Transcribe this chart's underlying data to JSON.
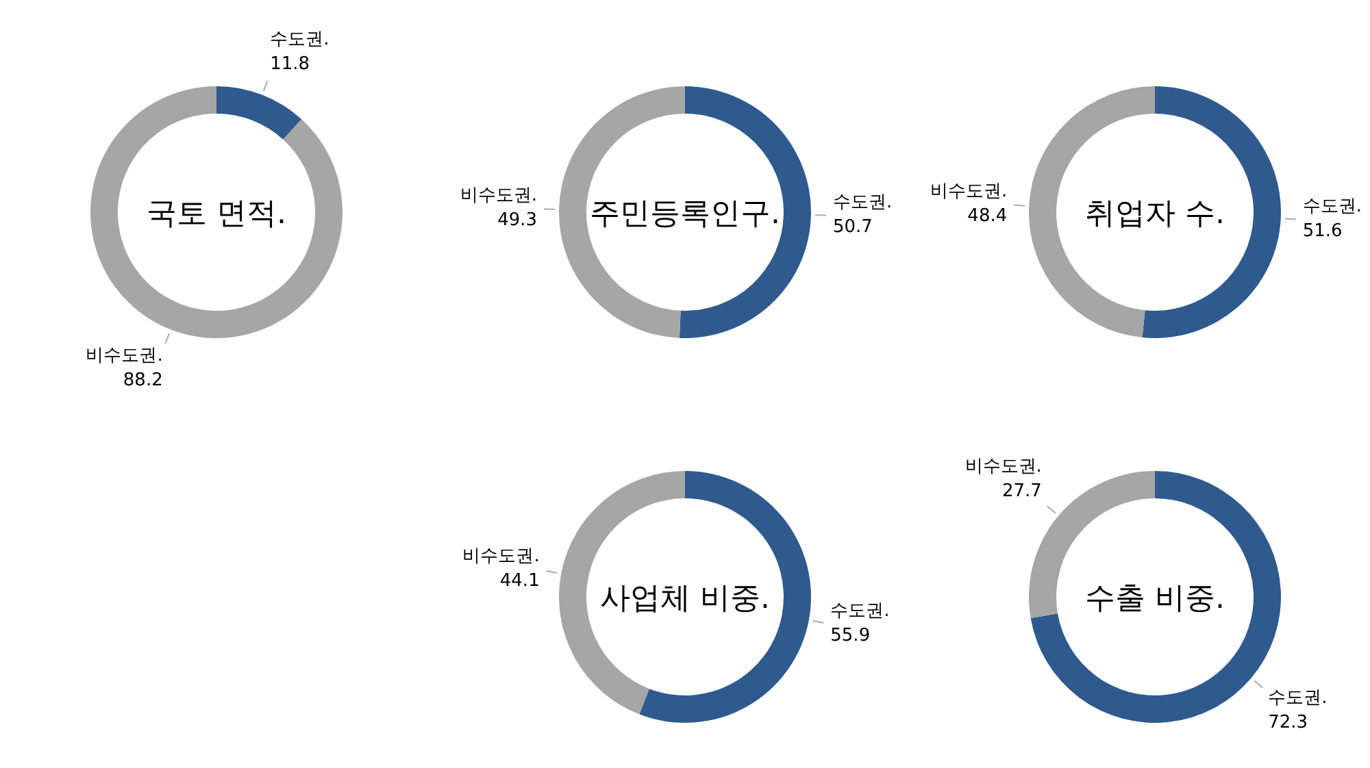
{
  "chart_data": [
    {
      "type": "donut",
      "title": "국토 면적.",
      "categories": [
        "수도권.",
        "비수도권."
      ],
      "values": [
        11.8,
        88.2
      ],
      "colors": [
        "#2e5a8e",
        "#a6a6a6"
      ],
      "data_labels": true
    },
    {
      "type": "donut",
      "title": "주민등록인구.",
      "categories": [
        "수도권.",
        "비수도권."
      ],
      "values": [
        50.7,
        49.3
      ],
      "colors": [
        "#2e5a8e",
        "#a6a6a6"
      ],
      "data_labels": true
    },
    {
      "type": "donut",
      "title": "취업자 수.",
      "categories": [
        "수도권.",
        "비수도권."
      ],
      "values": [
        51.6,
        48.4
      ],
      "colors": [
        "#2e5a8e",
        "#a6a6a6"
      ],
      "data_labels": true
    },
    {
      "type": "donut",
      "title": "사업체 비중.",
      "categories": [
        "수도권.",
        "비수도권."
      ],
      "values": [
        55.9,
        44.1
      ],
      "colors": [
        "#2e5a8e",
        "#a6a6a6"
      ],
      "data_labels": true
    },
    {
      "type": "donut",
      "title": "수출 비중.",
      "categories": [
        "수도권.",
        "비수도권."
      ],
      "values": [
        72.3,
        27.7
      ],
      "colors": [
        "#2e5a8e",
        "#a6a6a6"
      ],
      "data_labels": true
    }
  ]
}
